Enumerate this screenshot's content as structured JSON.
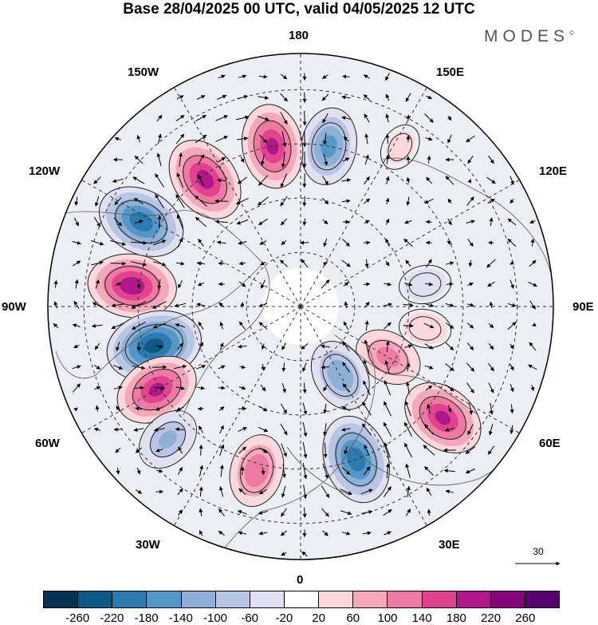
{
  "title": "Base 28/04/2025 00 UTC, valid 04/05/2025 12 UTC",
  "logo": {
    "text": "MODES",
    "mark": "©"
  },
  "longitude_labels": {
    "lon_180": "180",
    "lon_150e": "150E",
    "lon_120e": "120E",
    "lon_90e": "90E",
    "lon_60e": "60E",
    "lon_30e": "30E",
    "lon_0": "0",
    "lon_30w": "30W",
    "lon_60w": "60W",
    "lon_90w": "90W",
    "lon_120w": "120W",
    "lon_150w": "150W"
  },
  "reference_vector": {
    "label": "30"
  },
  "colorbar": {
    "colors": [
      "#08304f",
      "#0f5785",
      "#2d7ab0",
      "#5597c6",
      "#8fb0d6",
      "#bac5e3",
      "#e0e0f0",
      "#ffffff",
      "#fbd8dc",
      "#f4a9ba",
      "#ee7aa3",
      "#e0448f",
      "#b01789",
      "#840679",
      "#54056c"
    ],
    "tick_labels": [
      "-260",
      "-220",
      "-180",
      "-140",
      "-100",
      "-60",
      "-20",
      "20",
      "60",
      "100",
      "140",
      "180",
      "220",
      "260"
    ]
  },
  "anomaly_centers": [
    {
      "lon": 170,
      "lat": 45,
      "value": -150
    },
    {
      "lon": -170,
      "lat": 45,
      "value": 180
    },
    {
      "lon": -143,
      "lat": 46,
      "value": 190
    },
    {
      "lon": 148,
      "lat": 38,
      "value": 20
    },
    {
      "lon": -118,
      "lat": 40,
      "value": -200
    },
    {
      "lon": -97,
      "lat": 43,
      "value": 200
    },
    {
      "lon": -75,
      "lat": 48,
      "value": -230
    },
    {
      "lon": -60,
      "lat": 44,
      "value": 180
    },
    {
      "lon": -45,
      "lat": 38,
      "value": -100
    },
    {
      "lon": -15,
      "lat": 43,
      "value": 130
    },
    {
      "lon": 20,
      "lat": 45,
      "value": -200
    },
    {
      "lon": 52,
      "lat": 40,
      "value": 180
    },
    {
      "lon": 60,
      "lat": 62,
      "value": 110
    },
    {
      "lon": 30,
      "lat": 68,
      "value": -130
    },
    {
      "lon": 100,
      "lat": 55,
      "value": -40
    },
    {
      "lon": 80,
      "lat": 55,
      "value": 40
    }
  ]
}
